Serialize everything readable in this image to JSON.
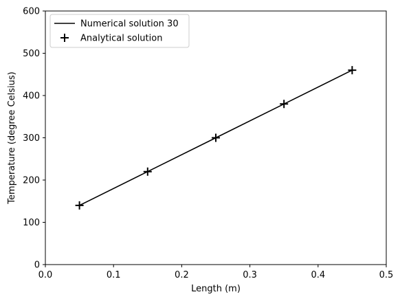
{
  "chart_data": {
    "type": "line",
    "title": "",
    "xlabel": "Length (m)",
    "ylabel": "Temperature (degree Celsius)",
    "xlim": [
      0.0,
      0.5
    ],
    "ylim": [
      0,
      600
    ],
    "xticks": [
      0.0,
      0.1,
      0.2,
      0.3,
      0.4,
      0.5
    ],
    "xtick_labels": [
      "0.0",
      "0.1",
      "0.2",
      "0.3",
      "0.4",
      "0.5"
    ],
    "yticks": [
      0,
      100,
      200,
      300,
      400,
      500,
      600
    ],
    "ytick_labels": [
      "0",
      "100",
      "200",
      "300",
      "400",
      "500",
      "600"
    ],
    "grid": false,
    "legend_position": "top-left",
    "series": [
      {
        "name": "Numerical solution 30",
        "style": "line",
        "color": "#000000",
        "x": [
          0.05,
          0.15,
          0.25,
          0.35,
          0.45
        ],
        "y": [
          140,
          220,
          300,
          380,
          460
        ]
      },
      {
        "name": "Analytical solution",
        "style": "marker-plus",
        "color": "#000000",
        "x": [
          0.05,
          0.15,
          0.25,
          0.35,
          0.45
        ],
        "y": [
          140,
          220,
          300,
          380,
          460
        ]
      }
    ]
  }
}
